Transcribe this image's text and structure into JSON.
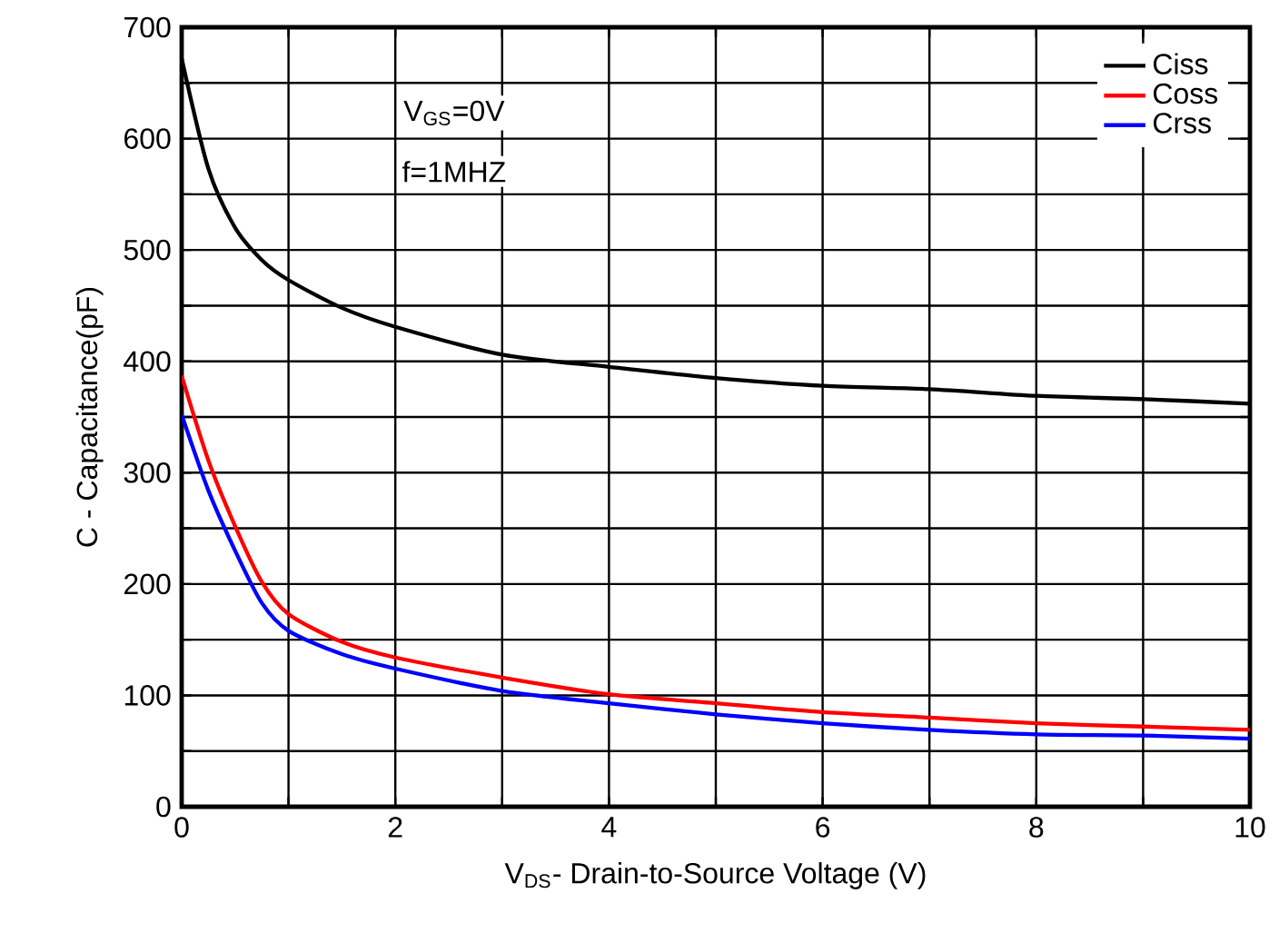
{
  "chart_data": {
    "type": "line",
    "xlabel": "V$_{DS}$- Drain-to-Source Voltage (V)",
    "ylabel": "C - Capacitance(pF)",
    "annotations": [
      "V$_{GS}$=0V",
      "f=1MHZ"
    ],
    "x": [
      0,
      0.25,
      0.5,
      0.75,
      1,
      1.5,
      2,
      3,
      4,
      5,
      6,
      7,
      8,
      9,
      10
    ],
    "series": [
      {
        "name": "Ciss",
        "color": "#000000",
        "values": [
          672,
          573,
          520,
          491,
          473,
          448,
          431,
          406,
          395,
          385,
          378,
          375,
          369,
          366,
          362
        ]
      },
      {
        "name": "Coss",
        "color": "#ff0000",
        "values": [
          387,
          311,
          252,
          202,
          173,
          148,
          134,
          116,
          101,
          93,
          85,
          80,
          75,
          72,
          69
        ]
      },
      {
        "name": "Crss",
        "color": "#0000ff",
        "values": [
          352,
          284,
          230,
          183,
          158,
          137,
          124,
          104,
          93,
          83,
          75,
          69,
          65,
          64,
          61
        ]
      }
    ],
    "xlim": [
      0,
      10
    ],
    "xticks": [
      0,
      {
        "value": 1,
        "label": null
      },
      2,
      {
        "value": 3,
        "label": null
      },
      4,
      {
        "value": 5,
        "label": null
      },
      6,
      {
        "value": 7,
        "label": null
      },
      8,
      {
        "value": 9,
        "label": null
      },
      10
    ],
    "ylim": [
      0,
      700
    ],
    "yticks": [
      0,
      {
        "value": 50,
        "label": null
      },
      100,
      {
        "value": 150,
        "label": null
      },
      200,
      {
        "value": 250,
        "label": null
      },
      300,
      {
        "value": 350,
        "label": null
      },
      400,
      {
        "value": 450,
        "label": null
      },
      500,
      {
        "value": 550,
        "label": null
      },
      600,
      {
        "value": 650,
        "label": null
      },
      700
    ],
    "grid": true,
    "legend": "top right",
    "line_style": "solid",
    "marker": "none"
  }
}
